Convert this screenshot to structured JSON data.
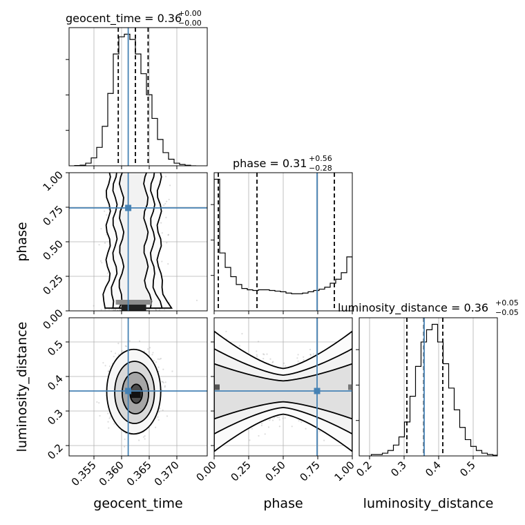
{
  "chart_data": {
    "type": "corner",
    "parameters": [
      "geocent_time",
      "phase",
      "luminosity_distance"
    ],
    "truth_color": "#4682b4",
    "hist_color": "#000000",
    "grid": true,
    "titles": [
      {
        "param": "geocent_time",
        "text": "geocent_time = 0.36",
        "plus": "+0.00",
        "minus": "−0.00"
      },
      {
        "param": "phase",
        "text": "phase = 0.31",
        "plus": "+0.56",
        "minus": "−0.28"
      },
      {
        "param": "luminosity_distance",
        "text": "luminosity_distance = 0.36",
        "plus": "+0.05",
        "minus": "−0.05"
      }
    ],
    "truths": {
      "geocent_time": 0.3612,
      "phase": 0.745,
      "luminosity_distance": 0.358
    },
    "quantiles": {
      "geocent_time": [
        0.3594,
        0.3625,
        0.3648
      ],
      "phase": [
        0.03,
        0.31,
        0.87
      ],
      "luminosity_distance": [
        0.308,
        0.357,
        0.412
      ]
    },
    "ranges": {
      "geocent_time": [
        0.3505,
        0.3755
      ],
      "phase": [
        0.0,
        1.0
      ],
      "luminosity_distance": [
        0.17,
        0.57
      ]
    },
    "ticks": {
      "geocent_time": [
        {
          "value": 0.355,
          "label": "0.355"
        },
        {
          "value": 0.36,
          "label": "0.360"
        },
        {
          "value": 0.365,
          "label": "0.365"
        },
        {
          "value": 0.37,
          "label": "0.370"
        }
      ],
      "phase": [
        {
          "value": 0.0,
          "label": "0.00"
        },
        {
          "value": 0.25,
          "label": "0.25"
        },
        {
          "value": 0.5,
          "label": "0.50"
        },
        {
          "value": 0.75,
          "label": "0.75"
        },
        {
          "value": 1.0,
          "label": "1.00"
        }
      ],
      "luminosity_distance": [
        {
          "value": 0.2,
          "label": "0.2"
        },
        {
          "value": 0.3,
          "label": "0.3"
        },
        {
          "value": 0.4,
          "label": "0.4"
        },
        {
          "value": 0.5,
          "label": "0.5"
        }
      ]
    },
    "histograms": {
      "geocent_time": {
        "x_start": 0.3515,
        "bin_width": 0.001,
        "counts": [
          0.2,
          0.5,
          2,
          6,
          14,
          30,
          55,
          85,
          98,
          100,
          96,
          85,
          70,
          54,
          36,
          20,
          10,
          5,
          2,
          1,
          0.4,
          0
        ]
      },
      "phase": {
        "x_start": 0.0,
        "bin_width": 0.04,
        "counts": [
          100,
          44,
          33,
          26,
          20,
          17,
          16,
          15.5,
          16,
          16,
          15.5,
          15,
          14.5,
          13.5,
          13,
          13,
          13.5,
          14.5,
          15.5,
          16.5,
          18,
          21,
          24,
          29,
          41
        ]
      },
      "luminosity_distance": {
        "x_start": 0.205,
        "bin_width": 0.016,
        "counts": [
          1,
          1,
          2,
          4,
          8,
          14,
          25,
          44,
          66,
          84,
          93,
          97,
          84,
          68,
          50,
          34,
          21,
          12,
          7,
          4,
          2,
          1,
          0.5
        ]
      }
    },
    "joint_2d": [
      {
        "x": "geocent_time",
        "y": "phase",
        "shape": "band",
        "density_x_mean": 0.3622,
        "density_x_sd": 0.0022,
        "contours": [
          {
            "level": 0.5,
            "skew": 0.6,
            "width": 1.0
          },
          {
            "level": 0.8,
            "skew": 1.0,
            "width": 1.55
          },
          {
            "level": 0.95,
            "skew": 1.35,
            "width": 2.1
          }
        ]
      },
      {
        "x": "geocent_time",
        "y": "luminosity_distance",
        "shape": "blob",
        "mean": [
          0.3622,
          0.356
        ],
        "sd": [
          0.0021,
          0.05
        ],
        "contours": [
          {
            "level": 0.12
          },
          {
            "level": 0.5
          },
          {
            "level": 0.8
          },
          {
            "level": 0.95
          }
        ]
      },
      {
        "x": "phase",
        "y": "luminosity_distance",
        "shape": "waist",
        "mean_y": 0.357,
        "sd_y": 0.05,
        "contours": [
          {
            "level": 0.5
          },
          {
            "level": 0.8
          },
          {
            "level": 0.95
          }
        ]
      }
    ]
  }
}
